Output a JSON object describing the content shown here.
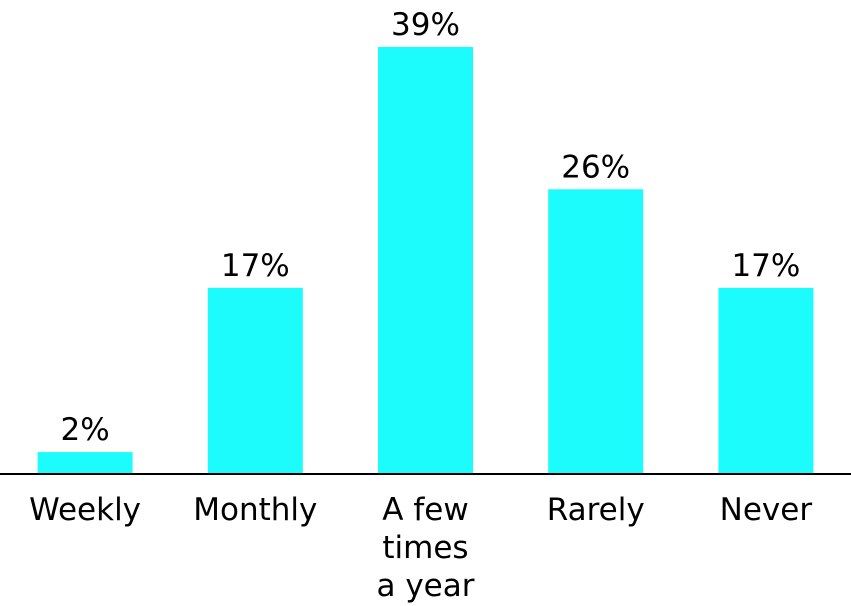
{
  "chart_data": {
    "type": "bar",
    "categories": [
      "Weekly",
      "Monthly",
      "A few times a year",
      "Rarely",
      "Never"
    ],
    "category_lines": [
      [
        "Weekly"
      ],
      [
        "Monthly"
      ],
      [
        "A few",
        "times",
        "a year"
      ],
      [
        "Rarely"
      ],
      [
        "Never"
      ]
    ],
    "values": [
      2,
      17,
      39,
      26,
      17
    ],
    "value_labels": [
      "2%",
      "17%",
      "39%",
      "26%",
      "17%"
    ],
    "unit": "%",
    "title": "",
    "xlabel": "",
    "ylabel": "",
    "ylim": [
      0,
      39
    ],
    "grid": false,
    "legend": "none",
    "bar_color": "#1dfcfc",
    "axis_color": "#000000"
  }
}
